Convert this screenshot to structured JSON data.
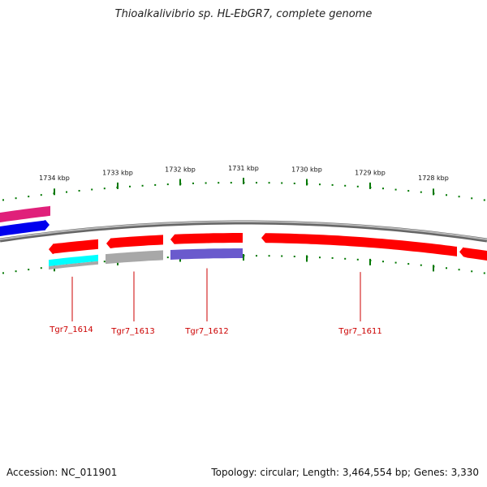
{
  "title": "Thioalkalivibrio sp. HL-EbGR7, complete genome",
  "footer": {
    "accession": "Accession: NC_011901",
    "summary": "Topology: circular; Length: 3,464,554 bp; Genes: 3,330"
  },
  "scale_labels": [
    "1734 kbp",
    "1733 kbp",
    "1732 kbp",
    "1731 kbp",
    "1730 kbp",
    "1729 kbp",
    "1728 kbp"
  ],
  "gene_labels": [
    "Tgr7_1614",
    "Tgr7_1613",
    "Tgr7_1612",
    "Tgr7_1611"
  ],
  "colors": {
    "cds": "#ff0000",
    "pink_feature": "#e0207a",
    "blue_feature": "#0000ee",
    "cyan_feature": "#00ffff",
    "gray_feature": "#a8a8a8",
    "purple_feature": "#6a5acd",
    "backbone": "#888888",
    "ticks": "#007700",
    "label": "#cc0000"
  }
}
